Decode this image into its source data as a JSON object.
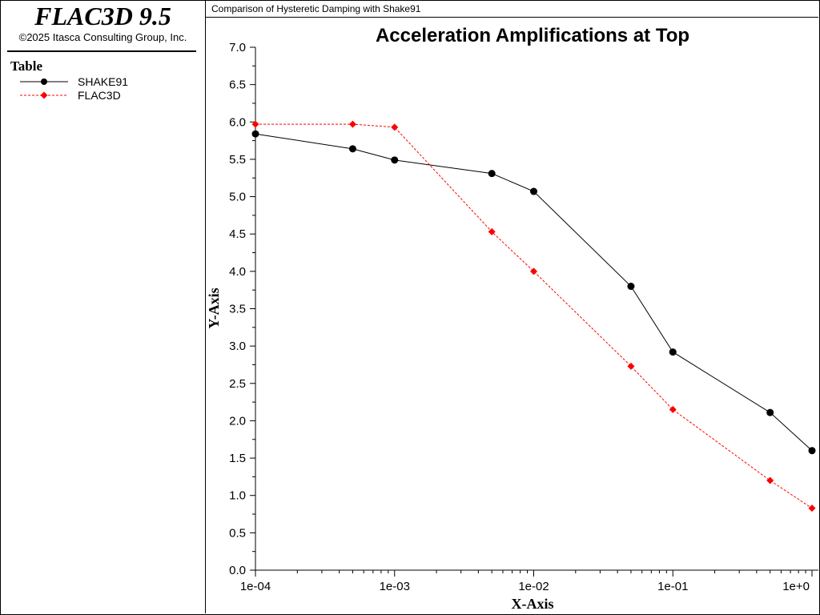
{
  "app": {
    "title": "FLAC3D 9.5",
    "copyright": "©2025 Itasca Consulting Group, Inc."
  },
  "legend": {
    "title": "Table",
    "items": [
      {
        "label": "SHAKE91",
        "color": "#000000",
        "marker": "circle",
        "line": "solid"
      },
      {
        "label": "FLAC3D",
        "color": "#ff0000",
        "marker": "diamond",
        "line": "dashed"
      }
    ]
  },
  "plot_header": {
    "title": "Comparison of Hysteretic Damping with Shake91"
  },
  "chart_data": {
    "type": "line",
    "title": "Acceleration Amplifications at Top",
    "xlabel": "X-Axis",
    "ylabel": "Y-Axis",
    "xscale": "log",
    "xlim": [
      0.0001,
      1
    ],
    "ylim": [
      0.0,
      7.0
    ],
    "xticks": [
      0.0001,
      0.001,
      0.01,
      0.1,
      1
    ],
    "xtick_labels": [
      "1e-04",
      "1e-03",
      "1e-02",
      "1e-01",
      "1e+00"
    ],
    "yticks": [
      0,
      0.5,
      1,
      1.5,
      2,
      2.5,
      3,
      3.5,
      4,
      4.5,
      5,
      5.5,
      6,
      6.5,
      7
    ],
    "ytick_labels": [
      "0.0",
      "0.5",
      "1.0",
      "1.5",
      "2.0",
      "2.5",
      "3.0",
      "3.5",
      "4.0",
      "4.5",
      "5.0",
      "5.5",
      "6.0",
      "6.5",
      "7.0"
    ],
    "grid": false,
    "legend_position": "left-panel",
    "series": [
      {
        "name": "SHAKE91",
        "color": "#000000",
        "marker": "circle",
        "line": "solid",
        "x": [
          0.0001,
          0.0005,
          0.001,
          0.005,
          0.01,
          0.05,
          0.1,
          0.5,
          1
        ],
        "y": [
          5.84,
          5.64,
          5.49,
          5.31,
          5.07,
          3.8,
          2.92,
          2.11,
          1.6
        ]
      },
      {
        "name": "FLAC3D",
        "color": "#ff0000",
        "marker": "diamond",
        "line": "dashed",
        "x": [
          0.0001,
          0.0005,
          0.001,
          0.005,
          0.01,
          0.05,
          0.1,
          0.5,
          1
        ],
        "y": [
          5.97,
          5.97,
          5.93,
          4.53,
          4.0,
          2.73,
          2.15,
          1.2,
          0.83
        ]
      }
    ]
  }
}
